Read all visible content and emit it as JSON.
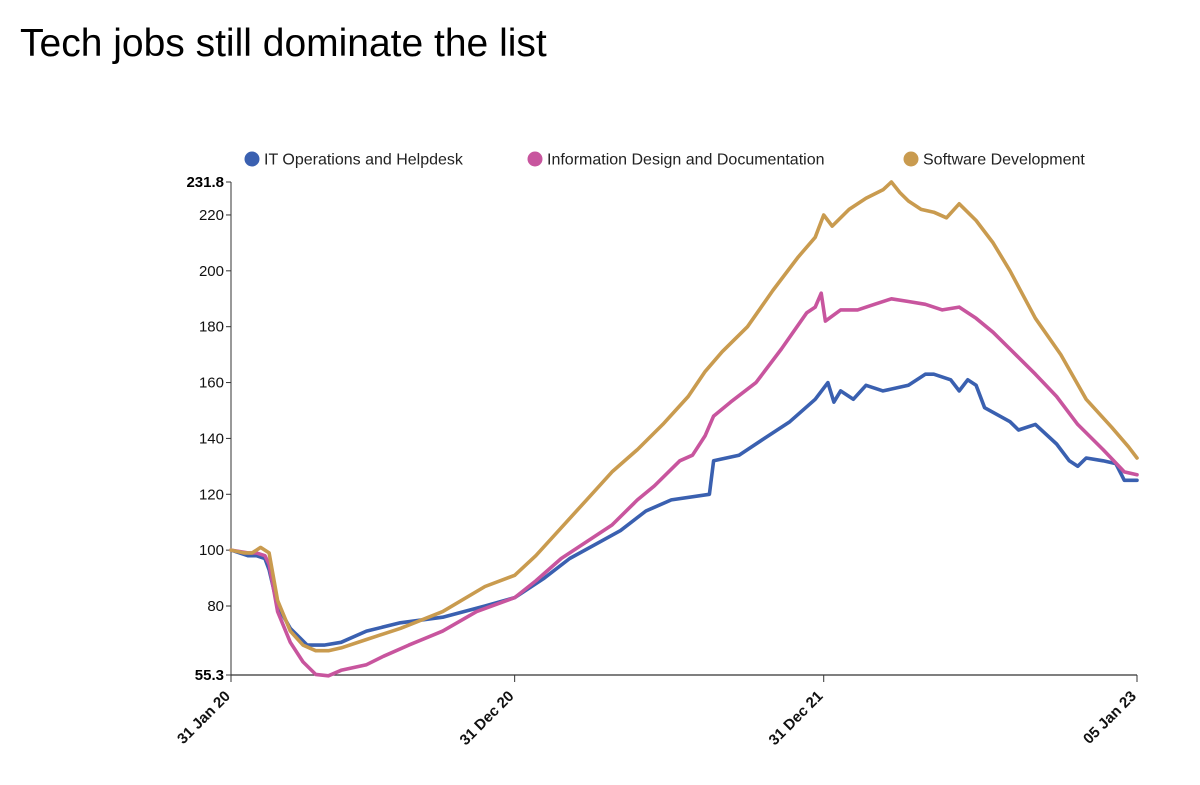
{
  "colors": {
    "it": "#3a60b0",
    "info": "#c8559e",
    "soft": "#c99b4f"
  },
  "chart_data": {
    "type": "line",
    "title": "Tech jobs still dominate the list",
    "xlabel": "",
    "ylabel": "",
    "ylim": [
      55.3,
      231.8
    ],
    "y_bounds_labels": [
      "55.3",
      "231.8"
    ],
    "y_ticks": [
      80,
      100,
      120,
      140,
      160,
      180,
      200,
      220
    ],
    "x_ticks": [
      {
        "t": 0,
        "label": "31 Jan 20"
      },
      {
        "t": 335,
        "label": "31 Dec 20"
      },
      {
        "t": 700,
        "label": "31 Dec 21"
      },
      {
        "t": 1070,
        "label": "05 Jan 23"
      }
    ],
    "x_domain": [
      0,
      1070
    ],
    "legend": "top",
    "series": [
      {
        "name": "IT Operations and Helpdesk",
        "color": "#3a60b0",
        "points": [
          [
            0,
            100
          ],
          [
            20,
            98
          ],
          [
            30,
            98
          ],
          [
            40,
            97
          ],
          [
            45,
            93
          ],
          [
            55,
            80
          ],
          [
            70,
            72
          ],
          [
            90,
            66
          ],
          [
            110,
            66
          ],
          [
            130,
            67
          ],
          [
            160,
            71
          ],
          [
            200,
            74
          ],
          [
            250,
            76
          ],
          [
            300,
            80
          ],
          [
            335,
            83
          ],
          [
            370,
            90
          ],
          [
            400,
            97
          ],
          [
            430,
            102
          ],
          [
            460,
            107
          ],
          [
            490,
            114
          ],
          [
            520,
            118
          ],
          [
            565,
            120
          ],
          [
            570,
            132
          ],
          [
            600,
            134
          ],
          [
            630,
            140
          ],
          [
            660,
            146
          ],
          [
            690,
            154
          ],
          [
            705,
            160
          ],
          [
            712,
            153
          ],
          [
            720,
            157
          ],
          [
            735,
            154
          ],
          [
            750,
            159
          ],
          [
            770,
            157
          ],
          [
            800,
            159
          ],
          [
            820,
            163
          ],
          [
            830,
            163
          ],
          [
            850,
            161
          ],
          [
            860,
            157
          ],
          [
            870,
            161
          ],
          [
            880,
            159
          ],
          [
            890,
            151
          ],
          [
            920,
            146
          ],
          [
            930,
            143
          ],
          [
            950,
            145
          ],
          [
            975,
            138
          ],
          [
            990,
            132
          ],
          [
            1000,
            130
          ],
          [
            1010,
            133
          ],
          [
            1030,
            132
          ],
          [
            1045,
            131
          ],
          [
            1055,
            125
          ],
          [
            1070,
            125
          ]
        ]
      },
      {
        "name": "Information Design and Documentation",
        "color": "#c8559e",
        "points": [
          [
            0,
            100
          ],
          [
            20,
            99
          ],
          [
            30,
            99
          ],
          [
            40,
            98
          ],
          [
            45,
            95
          ],
          [
            55,
            78
          ],
          [
            70,
            67
          ],
          [
            85,
            60
          ],
          [
            100,
            55.5
          ],
          [
            115,
            55
          ],
          [
            130,
            57
          ],
          [
            160,
            59
          ],
          [
            180,
            62
          ],
          [
            210,
            66
          ],
          [
            250,
            71
          ],
          [
            290,
            78
          ],
          [
            335,
            83
          ],
          [
            360,
            89
          ],
          [
            390,
            97
          ],
          [
            420,
            103
          ],
          [
            450,
            109
          ],
          [
            480,
            118
          ],
          [
            500,
            123
          ],
          [
            530,
            132
          ],
          [
            545,
            134
          ],
          [
            560,
            141
          ],
          [
            570,
            148
          ],
          [
            590,
            153
          ],
          [
            620,
            160
          ],
          [
            650,
            172
          ],
          [
            680,
            185
          ],
          [
            690,
            187
          ],
          [
            697,
            192
          ],
          [
            702,
            182
          ],
          [
            720,
            186
          ],
          [
            740,
            186
          ],
          [
            760,
            188
          ],
          [
            780,
            190
          ],
          [
            800,
            189
          ],
          [
            820,
            188
          ],
          [
            840,
            186
          ],
          [
            860,
            187
          ],
          [
            880,
            183
          ],
          [
            900,
            178
          ],
          [
            920,
            172
          ],
          [
            950,
            163
          ],
          [
            975,
            155
          ],
          [
            1000,
            145
          ],
          [
            1030,
            136
          ],
          [
            1055,
            128
          ],
          [
            1070,
            127
          ]
        ]
      },
      {
        "name": "Software Development",
        "color": "#c99b4f",
        "points": [
          [
            0,
            100
          ],
          [
            15,
            99
          ],
          [
            25,
            99
          ],
          [
            35,
            101
          ],
          [
            45,
            99
          ],
          [
            55,
            82
          ],
          [
            70,
            71
          ],
          [
            85,
            66
          ],
          [
            100,
            64
          ],
          [
            115,
            64
          ],
          [
            130,
            65
          ],
          [
            160,
            68
          ],
          [
            200,
            72
          ],
          [
            250,
            78
          ],
          [
            300,
            87
          ],
          [
            335,
            91
          ],
          [
            360,
            98
          ],
          [
            390,
            108
          ],
          [
            420,
            118
          ],
          [
            450,
            128
          ],
          [
            480,
            136
          ],
          [
            510,
            145
          ],
          [
            540,
            155
          ],
          [
            560,
            164
          ],
          [
            580,
            171
          ],
          [
            610,
            180
          ],
          [
            640,
            193
          ],
          [
            670,
            205
          ],
          [
            690,
            212
          ],
          [
            700,
            220
          ],
          [
            710,
            216
          ],
          [
            730,
            222
          ],
          [
            750,
            226
          ],
          [
            770,
            229
          ],
          [
            780,
            231.8
          ],
          [
            790,
            228
          ],
          [
            800,
            225
          ],
          [
            815,
            222
          ],
          [
            830,
            221
          ],
          [
            845,
            219
          ],
          [
            860,
            224
          ],
          [
            880,
            218
          ],
          [
            900,
            210
          ],
          [
            920,
            200
          ],
          [
            950,
            183
          ],
          [
            980,
            170
          ],
          [
            1010,
            154
          ],
          [
            1040,
            144
          ],
          [
            1060,
            137
          ],
          [
            1070,
            133
          ]
        ]
      }
    ]
  }
}
